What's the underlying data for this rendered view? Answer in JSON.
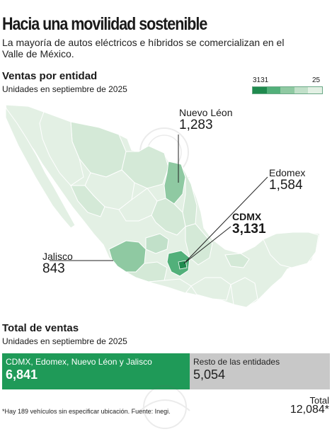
{
  "header": {
    "title": "Hacia una movilidad sostenible",
    "subtitle": "La mayoría de autos eléctricos e híbridos se comercializan en el Valle de México."
  },
  "map_section": {
    "title": "Ventas por entidad",
    "subtitle": "Unidades en septiembre de 2025",
    "legend": {
      "max_label": "3131",
      "min_label": "25",
      "colors": [
        "#1f8a4e",
        "#52b07a",
        "#8fc9a2",
        "#c1e0c9",
        "#e3f0e4"
      ]
    },
    "callouts": [
      {
        "name": "Nuevo Léon",
        "value": "1,283"
      },
      {
        "name": "Edomex",
        "value": "1,584"
      },
      {
        "name": "CDMX",
        "value": "3,131"
      },
      {
        "name": "Jalisco",
        "value": "843"
      }
    ]
  },
  "totals_section": {
    "title": "Total de ventas",
    "subtitle": "Unidades en septiembre de 2025",
    "group_label": "CDMX, Edomex, Nuevo Léon y Jalisco",
    "group_value": "6,841",
    "rest_label": "Resto de las entidades",
    "rest_value": "5,054",
    "total_label": "Total",
    "total_value": "12,084*"
  },
  "footnote": "*Hay 189 vehículos sin especificar ubicación. Fuente: Inegi."
}
